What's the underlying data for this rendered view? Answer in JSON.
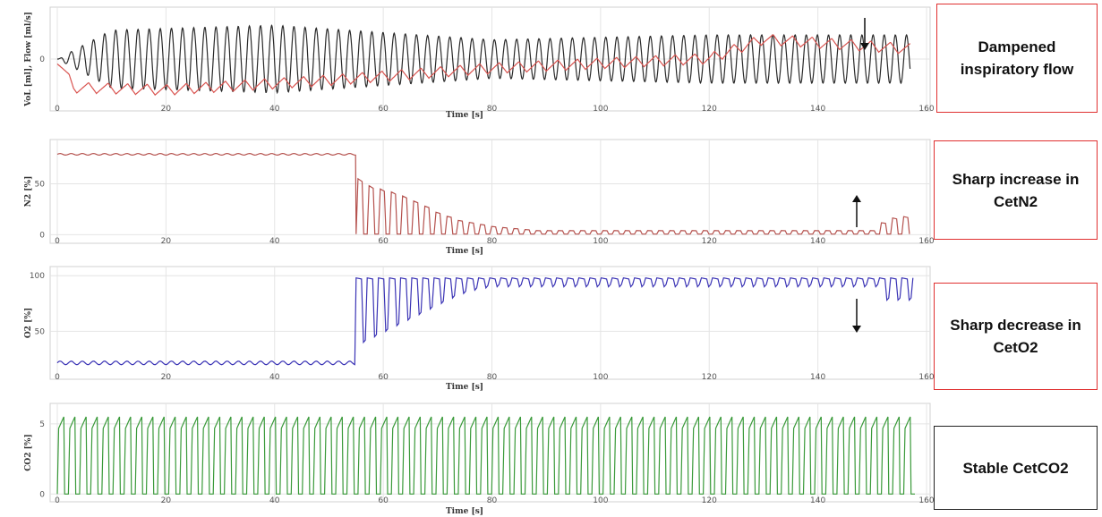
{
  "colors": {
    "black_trace": "#2a2a2a",
    "red_trace": "#d9534f",
    "n2_trace": "#b5524e",
    "o2_trace": "#3a33b5",
    "co2_trace": "#3a9a3a",
    "grid": "#e4e4e4",
    "callout_red": "#e03030",
    "callout_black": "#222222"
  },
  "callouts": [
    {
      "text": "Dampened inspiratory flow",
      "border": "red",
      "arrow": "down"
    },
    {
      "text": "Sharp increase in CetN2",
      "border": "red",
      "arrow": "up"
    },
    {
      "text": "Sharp decrease in CetO2",
      "border": "red",
      "arrow": "down"
    },
    {
      "text": "Stable CetCO2",
      "border": "black",
      "arrow": "none"
    }
  ],
  "chart_data": [
    {
      "type": "line",
      "ylabel": "VoL [ml], Flow [ml/s]",
      "xlabel": "Time [s]",
      "xlim": [
        0,
        160
      ],
      "x_ticks": [
        0,
        20,
        40,
        60,
        80,
        100,
        120,
        140,
        160
      ],
      "x_tick_labels": [
        "0",
        "20",
        "40",
        "60",
        "80",
        "100",
        "120",
        "140",
        "160"
      ],
      "y_ticks": [
        0
      ],
      "y_tick_labels": [
        "0"
      ],
      "grid": true,
      "series": [
        {
          "color": "black_trace",
          "kind": "oscillation",
          "period_s": 2.05,
          "x_start": 0,
          "x_end": 157,
          "note_points": [
            [
              0,
              0
            ],
            [
              10,
              0.6
            ],
            [
              40,
              0.7
            ],
            [
              80,
              0.4
            ],
            [
              120,
              0.5
            ],
            [
              157,
              0.5
            ]
          ]
        },
        {
          "color": "red_trace",
          "kind": "sawtooth_drift",
          "period_s": 3.6,
          "x_start": 0,
          "x_end": 157,
          "note_points": [
            [
              0,
              0
            ],
            [
              3,
              -0.6
            ],
            [
              20,
              -0.65
            ],
            [
              50,
              -0.45
            ],
            [
              80,
              -0.2
            ],
            [
              120,
              0.0
            ],
            [
              130,
              0.4
            ],
            [
              157,
              0.2
            ]
          ]
        }
      ]
    },
    {
      "type": "line",
      "ylabel": "N2 [%]",
      "xlabel": "Time [s]",
      "xlim": [
        0,
        160
      ],
      "ylim": [
        -5,
        90
      ],
      "x_ticks": [
        0,
        20,
        40,
        60,
        80,
        100,
        120,
        140,
        160
      ],
      "x_tick_labels": [
        "0",
        "20",
        "40",
        "60",
        "80",
        "100",
        "120",
        "140",
        "160"
      ],
      "y_ticks": [
        0,
        50
      ],
      "y_tick_labels": [
        "0",
        "50"
      ],
      "grid": true,
      "series": [
        {
          "color": "n2_trace",
          "kind": "n2_washout",
          "baseline_high": 79,
          "step_time": 55,
          "peaks_after": [
            55,
            48,
            45,
            42,
            38,
            33,
            28,
            22,
            18,
            14,
            12,
            10,
            8,
            7,
            6,
            5
          ],
          "late_rise_start": 150,
          "late_peak": 18,
          "x_end": 157
        }
      ]
    },
    {
      "type": "line",
      "ylabel": "O2 [%]",
      "xlabel": "Time [s]",
      "xlim": [
        0,
        160
      ],
      "ylim": [
        10,
        105
      ],
      "x_ticks": [
        0,
        20,
        40,
        60,
        80,
        100,
        120,
        140,
        160
      ],
      "x_tick_labels": [
        "0",
        "20",
        "40",
        "60",
        "80",
        "100",
        "120",
        "140",
        "160"
      ],
      "y_ticks": [
        50,
        100
      ],
      "y_tick_labels": [
        "50",
        "100"
      ],
      "grid": true,
      "series": [
        {
          "color": "o2_trace",
          "kind": "o2_washin",
          "baseline_low": 20,
          "baseline_high": 23,
          "step_time": 55,
          "peak": 98,
          "troughs_after": [
            40,
            45,
            50,
            55,
            60,
            65,
            70,
            75,
            80,
            84,
            87,
            89,
            90
          ],
          "late_drop_start": 150,
          "late_trough": 78,
          "x_end": 157
        }
      ]
    },
    {
      "type": "line",
      "ylabel": "CO2 [%]",
      "xlabel": "Time [s]",
      "xlim": [
        0,
        160
      ],
      "ylim": [
        -0.3,
        6.2
      ],
      "x_ticks": [
        0,
        20,
        40,
        60,
        80,
        100,
        120,
        140,
        160
      ],
      "x_tick_labels": [
        "0",
        "20",
        "40",
        "60",
        "80",
        "100",
        "120",
        "140",
        "160"
      ],
      "y_ticks": [
        0,
        5
      ],
      "y_tick_labels": [
        "0",
        "5"
      ],
      "grid": true,
      "series": [
        {
          "color": "co2_trace",
          "kind": "capnogram",
          "period_s": 2.05,
          "plateau": 5.5,
          "x_start": 0,
          "x_end": 157
        }
      ]
    }
  ]
}
